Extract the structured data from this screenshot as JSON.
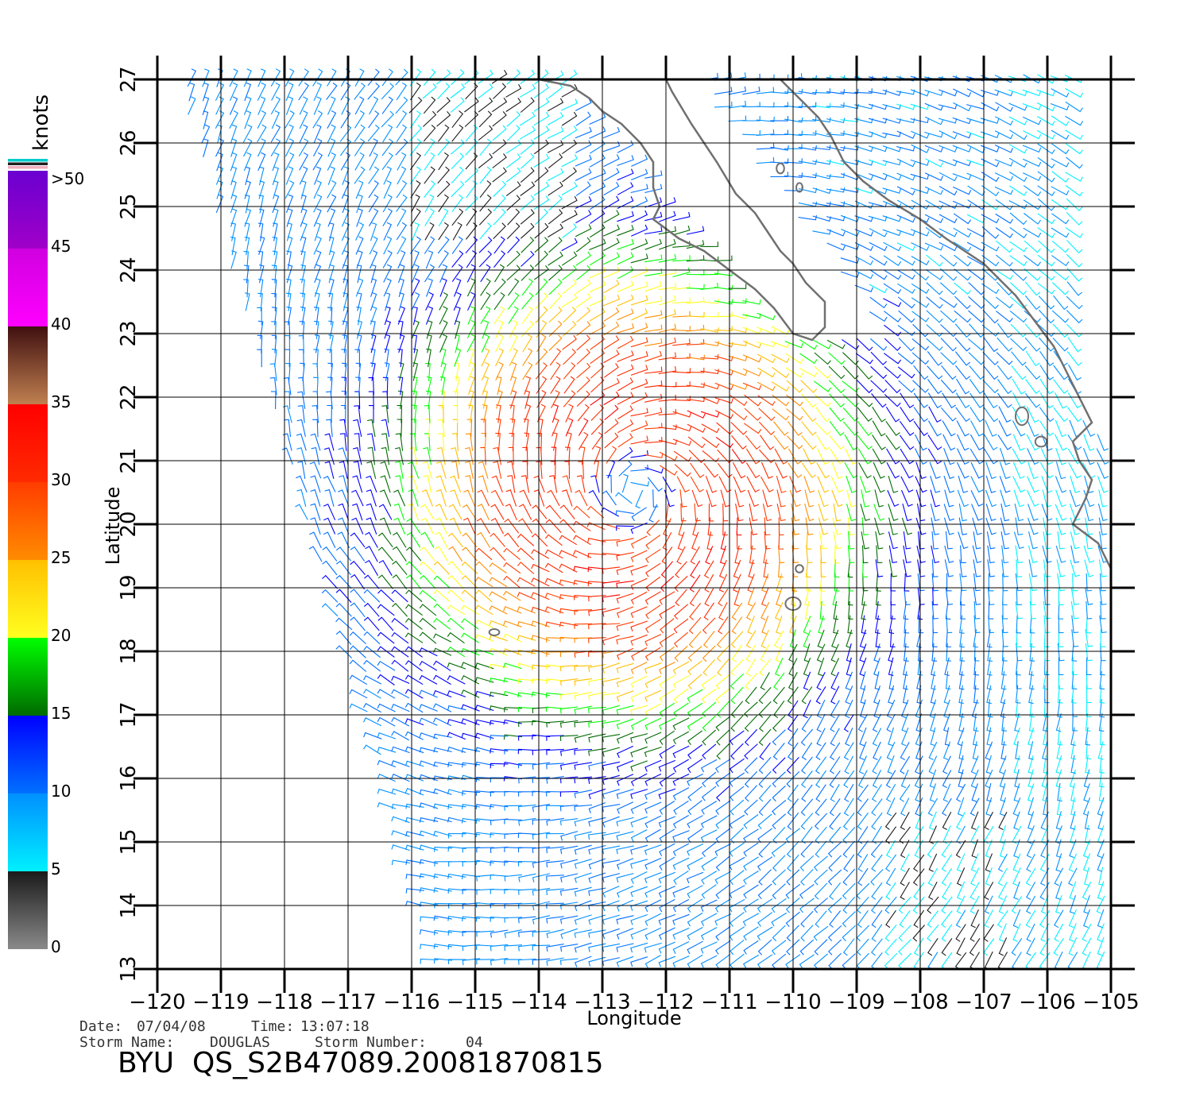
{
  "colorbar": {
    "unit": "knots",
    "labels": [
      ">50",
      "45",
      "40",
      "35",
      "30",
      "25",
      "20",
      "15",
      "10",
      "5",
      "0"
    ],
    "label_values": [
      50,
      45,
      40,
      35,
      30,
      25,
      20,
      15,
      10,
      5,
      0
    ],
    "bands": [
      {
        "min": 0,
        "max": 5,
        "from": "#8a8a8a",
        "to": "#1a1a1a"
      },
      {
        "min": 5,
        "max": 10,
        "from": "#00f0ff",
        "to": "#0090ff"
      },
      {
        "min": 10,
        "max": 15,
        "from": "#0070ff",
        "to": "#0000ff"
      },
      {
        "min": 15,
        "max": 20,
        "from": "#006a00",
        "to": "#00ff00"
      },
      {
        "min": 20,
        "max": 25,
        "from": "#ffff20",
        "to": "#ffc000"
      },
      {
        "min": 25,
        "max": 30,
        "from": "#ff8c00",
        "to": "#ff3c00"
      },
      {
        "min": 30,
        "max": 35,
        "from": "#ff2a00",
        "to": "#ff0000"
      },
      {
        "min": 35,
        "max": 40,
        "from": "#c08050",
        "to": "#401010"
      },
      {
        "min": 40,
        "max": 45,
        "from": "#ff00ff",
        "to": "#d000e0"
      },
      {
        "min": 45,
        "max": 50,
        "from": "#a000c8",
        "to": "#6a00d0"
      }
    ],
    "cap_colors": [
      "#00cccc",
      "#202020",
      "#f0b0c0"
    ]
  },
  "map": {
    "lon_min": -120,
    "lon_max": -105,
    "lat_min": 13,
    "lat_max": 27,
    "lon_ticks": [
      -120,
      -119,
      -118,
      -117,
      -116,
      -115,
      -114,
      -113,
      -112,
      -111,
      -110,
      -109,
      -108,
      -107,
      -106,
      -105
    ],
    "lat_ticks": [
      13,
      14,
      15,
      16,
      17,
      18,
      19,
      20,
      21,
      22,
      23,
      24,
      25,
      26,
      27
    ],
    "lon_tick_labels": [
      "−120",
      "−119",
      "−118",
      "−117",
      "−116",
      "−115",
      "−114",
      "−113",
      "−112",
      "−111",
      "−110",
      "−109",
      "−108",
      "−107",
      "−106",
      "−105"
    ],
    "lat_tick_labels": [
      "13",
      "14",
      "15",
      "16",
      "17",
      "18",
      "19",
      "20",
      "21",
      "22",
      "23",
      "24",
      "25",
      "26",
      "27"
    ],
    "xlabel": "Longitude",
    "ylabel": "Latitude",
    "storm_center": {
      "lon": -112.5,
      "lat": 20.5
    },
    "coastline_color": "#707070",
    "baja_coast": [
      [
        -114.0,
        27.0
      ],
      [
        -113.5,
        26.9
      ],
      [
        -113.2,
        26.7
      ],
      [
        -113.0,
        26.5
      ],
      [
        -112.7,
        26.3
      ],
      [
        -112.4,
        26.0
      ],
      [
        -112.2,
        25.7
      ],
      [
        -112.2,
        25.3
      ],
      [
        -112.1,
        25.0
      ],
      [
        -112.2,
        24.8
      ],
      [
        -111.8,
        24.5
      ],
      [
        -111.4,
        24.3
      ],
      [
        -111.0,
        24.0
      ],
      [
        -110.6,
        23.7
      ],
      [
        -110.3,
        23.4
      ],
      [
        -110.0,
        23.0
      ],
      [
        -109.7,
        22.9
      ],
      [
        -109.5,
        23.1
      ],
      [
        -109.5,
        23.5
      ],
      [
        -109.8,
        23.8
      ],
      [
        -110.0,
        24.1
      ],
      [
        -110.2,
        24.3
      ],
      [
        -110.4,
        24.6
      ],
      [
        -110.6,
        24.9
      ],
      [
        -110.9,
        25.2
      ],
      [
        -111.2,
        25.7
      ],
      [
        -111.4,
        26.0
      ],
      [
        -111.6,
        26.3
      ],
      [
        -111.9,
        26.8
      ],
      [
        -112.0,
        27.0
      ]
    ],
    "mainland_coast": [
      [
        -110.2,
        27.0
      ],
      [
        -110.0,
        26.8
      ],
      [
        -109.6,
        26.4
      ],
      [
        -109.4,
        26.1
      ],
      [
        -109.2,
        25.7
      ],
      [
        -108.9,
        25.4
      ],
      [
        -108.5,
        25.1
      ],
      [
        -108.0,
        24.8
      ],
      [
        -107.6,
        24.5
      ],
      [
        -107.0,
        24.1
      ],
      [
        -106.5,
        23.6
      ],
      [
        -106.2,
        23.2
      ],
      [
        -105.9,
        22.8
      ],
      [
        -105.7,
        22.4
      ],
      [
        -105.5,
        22.0
      ],
      [
        -105.3,
        21.6
      ],
      [
        -105.6,
        21.3
      ],
      [
        -105.5,
        21.0
      ],
      [
        -105.3,
        20.7
      ],
      [
        -105.4,
        20.4
      ],
      [
        -105.6,
        20.0
      ],
      [
        -105.2,
        19.7
      ],
      [
        -105.0,
        19.3
      ]
    ],
    "islands": [
      {
        "lon": -114.7,
        "lat": 18.3,
        "rx": 0.08,
        "ry": 0.05
      },
      {
        "lon": -110.0,
        "lat": 18.75,
        "rx": 0.12,
        "ry": 0.1
      },
      {
        "lon": -109.9,
        "lat": 19.3,
        "rx": 0.06,
        "ry": 0.06
      },
      {
        "lon": -106.4,
        "lat": 21.7,
        "rx": 0.1,
        "ry": 0.14
      },
      {
        "lon": -106.1,
        "lat": 21.3,
        "rx": 0.09,
        "ry": 0.08
      },
      {
        "lon": -110.2,
        "lat": 25.6,
        "rx": 0.06,
        "ry": 0.08
      },
      {
        "lon": -109.9,
        "lat": 25.3,
        "rx": 0.05,
        "ry": 0.07
      }
    ]
  },
  "footer": {
    "date_label": "Date:",
    "date_value": "07/04/08",
    "time_label": "Time:",
    "time_value": "13:07:18",
    "storm_name_label": "Storm  Name:",
    "storm_name_value": "DOUGLAS",
    "storm_number_label": "Storm  Number:",
    "storm_number_value": "04",
    "product_id": "BYU  QS_S2B47089.20081870815"
  }
}
